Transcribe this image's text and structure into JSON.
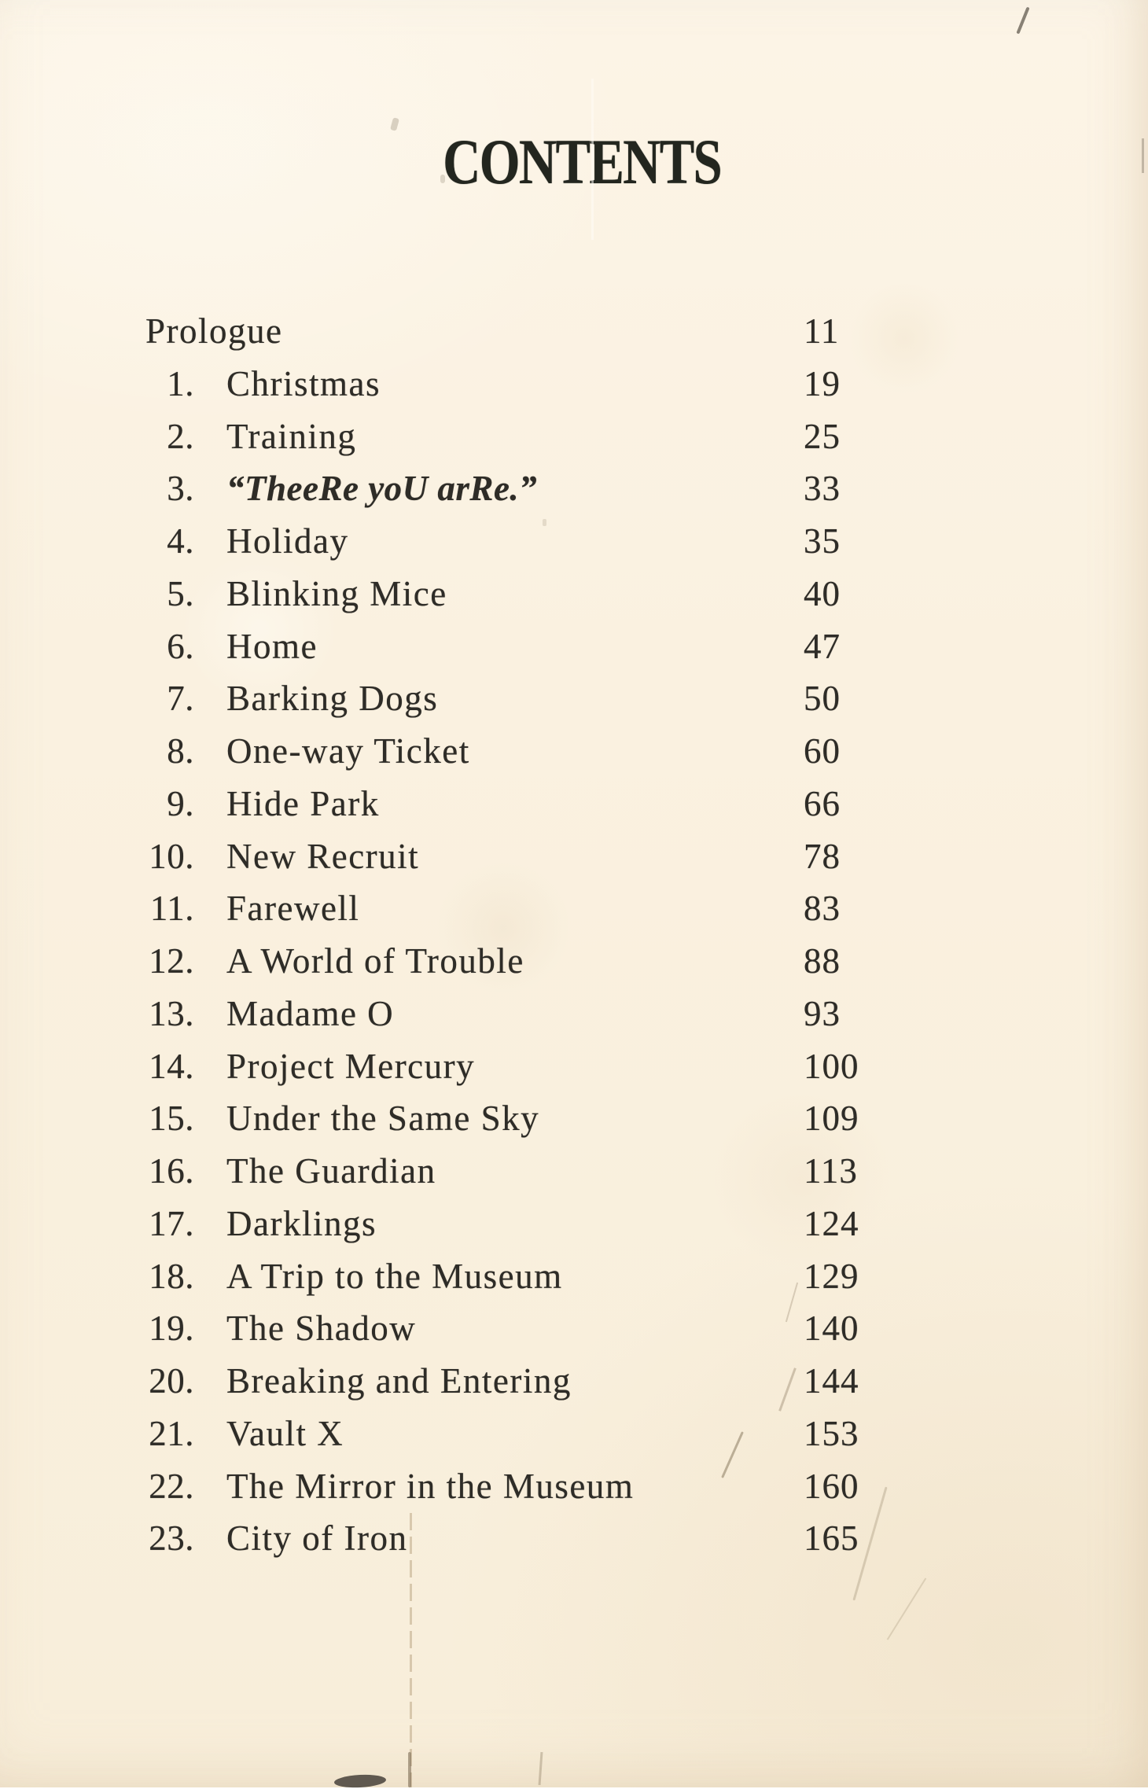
{
  "title": "CONTENTS",
  "colors": {
    "paper": "#faf1e0",
    "ink": "#2e2c27",
    "title_ink": "#23261f"
  },
  "toc": {
    "entries": [
      {
        "num": "",
        "title": "Prologue",
        "page": "11"
      },
      {
        "num": "1.",
        "title": "Christmas",
        "page": "19"
      },
      {
        "num": "2.",
        "title": "Training",
        "page": "25"
      },
      {
        "num": "3.",
        "title": "“TheeRe yoU arRe.”",
        "page": "33",
        "emphasis": true
      },
      {
        "num": "4.",
        "title": "Holiday",
        "page": "35"
      },
      {
        "num": "5.",
        "title": "Blinking Mice",
        "page": "40"
      },
      {
        "num": "6.",
        "title": "Home",
        "page": "47"
      },
      {
        "num": "7.",
        "title": "Barking Dogs",
        "page": "50"
      },
      {
        "num": "8.",
        "title": "One-way Ticket",
        "page": "60"
      },
      {
        "num": "9.",
        "title": "Hide Park",
        "page": "66"
      },
      {
        "num": "10.",
        "title": "New Recruit",
        "page": "78"
      },
      {
        "num": "11.",
        "title": "Farewell",
        "page": "83"
      },
      {
        "num": "12.",
        "title": "A World of Trouble",
        "page": "88"
      },
      {
        "num": "13.",
        "title": "Madame O",
        "page": "93"
      },
      {
        "num": "14.",
        "title": "Project Mercury",
        "page": "100"
      },
      {
        "num": "15.",
        "title": "Under the Same Sky",
        "page": "109"
      },
      {
        "num": "16.",
        "title": "The Guardian",
        "page": "113"
      },
      {
        "num": "17.",
        "title": "Darklings",
        "page": "124"
      },
      {
        "num": "18.",
        "title": "A Trip to the Museum",
        "page": "129"
      },
      {
        "num": "19.",
        "title": "The Shadow",
        "page": "140"
      },
      {
        "num": "20.",
        "title": "Breaking and Entering",
        "page": "144"
      },
      {
        "num": "21.",
        "title": "Vault X",
        "page": "153"
      },
      {
        "num": "22.",
        "title": "The Mirror in the Museum",
        "page": "160"
      },
      {
        "num": "23.",
        "title": "City of Iron",
        "page": "165"
      }
    ]
  }
}
